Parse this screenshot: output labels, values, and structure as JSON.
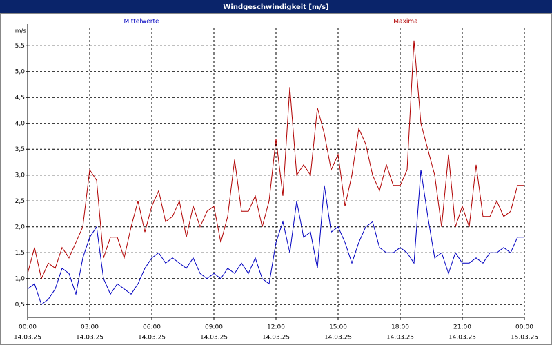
{
  "chart_data": {
    "type": "line",
    "title": "Windgeschwindigkeit [m/s]",
    "y_label": "m/s",
    "x": [
      0,
      20,
      40,
      60,
      80,
      100,
      120,
      140,
      160,
      180,
      200,
      220,
      240,
      260,
      280,
      300,
      320,
      340,
      360,
      380,
      400,
      420,
      440,
      460,
      480,
      500,
      520,
      540,
      560,
      580,
      600,
      620,
      640,
      660,
      680,
      700,
      720,
      740,
      760,
      780,
      800,
      820,
      840,
      860,
      880,
      900,
      920,
      940,
      960,
      980,
      1000,
      1020,
      1040,
      1060,
      1080,
      1100,
      1120,
      1140,
      1160,
      1180,
      1200,
      1220,
      1240,
      1260,
      1280,
      1300,
      1320,
      1340,
      1360,
      1380,
      1400,
      1420,
      1440
    ],
    "series": [
      {
        "name": "Mittelwerte",
        "color": "#0000c0",
        "values": [
          0.8,
          0.9,
          0.5,
          0.6,
          0.8,
          1.2,
          1.1,
          0.7,
          1.4,
          1.8,
          2.0,
          1.0,
          0.7,
          0.9,
          0.8,
          0.7,
          0.9,
          1.2,
          1.4,
          1.5,
          1.3,
          1.4,
          1.3,
          1.2,
          1.4,
          1.1,
          1.0,
          1.1,
          1.0,
          1.2,
          1.1,
          1.3,
          1.1,
          1.4,
          1.0,
          0.9,
          1.7,
          2.1,
          1.5,
          2.5,
          1.8,
          1.9,
          1.2,
          2.8,
          1.9,
          2.0,
          1.7,
          1.3,
          1.7,
          2.0,
          2.1,
          1.6,
          1.5,
          1.5,
          1.6,
          1.5,
          1.3,
          3.1,
          2.2,
          1.4,
          1.5,
          1.1,
          1.5,
          1.3,
          1.3,
          1.4,
          1.3,
          1.5,
          1.5,
          1.6,
          1.5,
          1.8,
          1.8
        ]
      },
      {
        "name": "Maxima",
        "color": "#b00000",
        "values": [
          1.1,
          1.6,
          1.0,
          1.3,
          1.2,
          1.6,
          1.4,
          1.7,
          2.0,
          3.1,
          2.9,
          1.4,
          1.8,
          1.8,
          1.4,
          2.0,
          2.5,
          1.9,
          2.4,
          2.7,
          2.1,
          2.2,
          2.5,
          1.8,
          2.4,
          2.0,
          2.3,
          2.4,
          1.7,
          2.2,
          3.3,
          2.3,
          2.3,
          2.6,
          2.0,
          2.5,
          3.7,
          2.6,
          4.7,
          3.0,
          3.2,
          3.0,
          4.3,
          3.8,
          3.1,
          3.4,
          2.4,
          3.0,
          3.9,
          3.6,
          3.0,
          2.7,
          3.2,
          2.8,
          2.8,
          3.1,
          5.6,
          4.0,
          3.5,
          3.0,
          2.0,
          3.4,
          2.0,
          2.4,
          2.0,
          3.2,
          2.2,
          2.2,
          2.5,
          2.2,
          2.3,
          2.8,
          2.8
        ]
      }
    ],
    "xlim": [
      0,
      1440
    ],
    "xticks": [
      {
        "value": 0,
        "label": "00:00"
      },
      {
        "value": 180,
        "label": "03:00"
      },
      {
        "value": 360,
        "label": "06:00"
      },
      {
        "value": 540,
        "label": "09:00"
      },
      {
        "value": 720,
        "label": "12:00"
      },
      {
        "value": 900,
        "label": "15:00"
      },
      {
        "value": 1080,
        "label": "18:00"
      },
      {
        "value": 1260,
        "label": "21:00"
      },
      {
        "value": 1440,
        "label": "00:00"
      }
    ],
    "xtick_dates": [
      "14.03.25",
      "14.03.25",
      "14.03.25",
      "14.03.25",
      "14.03.25",
      "14.03.25",
      "14.03.25",
      "14.03.25",
      "15.03.25"
    ],
    "ylim": [
      0.25,
      5.85
    ],
    "yticks": [
      {
        "value": 0.5,
        "label": "0,5"
      },
      {
        "value": 1,
        "label": "1,0"
      },
      {
        "value": 1.5,
        "label": "1,5"
      },
      {
        "value": 2,
        "label": "2,0"
      },
      {
        "value": 2.5,
        "label": "2,5"
      },
      {
        "value": 3,
        "label": "3,0"
      },
      {
        "value": 3.5,
        "label": "3,5"
      },
      {
        "value": 4,
        "label": "4,0"
      },
      {
        "value": 4.5,
        "label": "4,5"
      },
      {
        "value": 5,
        "label": "5,0"
      },
      {
        "value": 5.5,
        "label": "5,5"
      }
    ],
    "grid": true
  }
}
